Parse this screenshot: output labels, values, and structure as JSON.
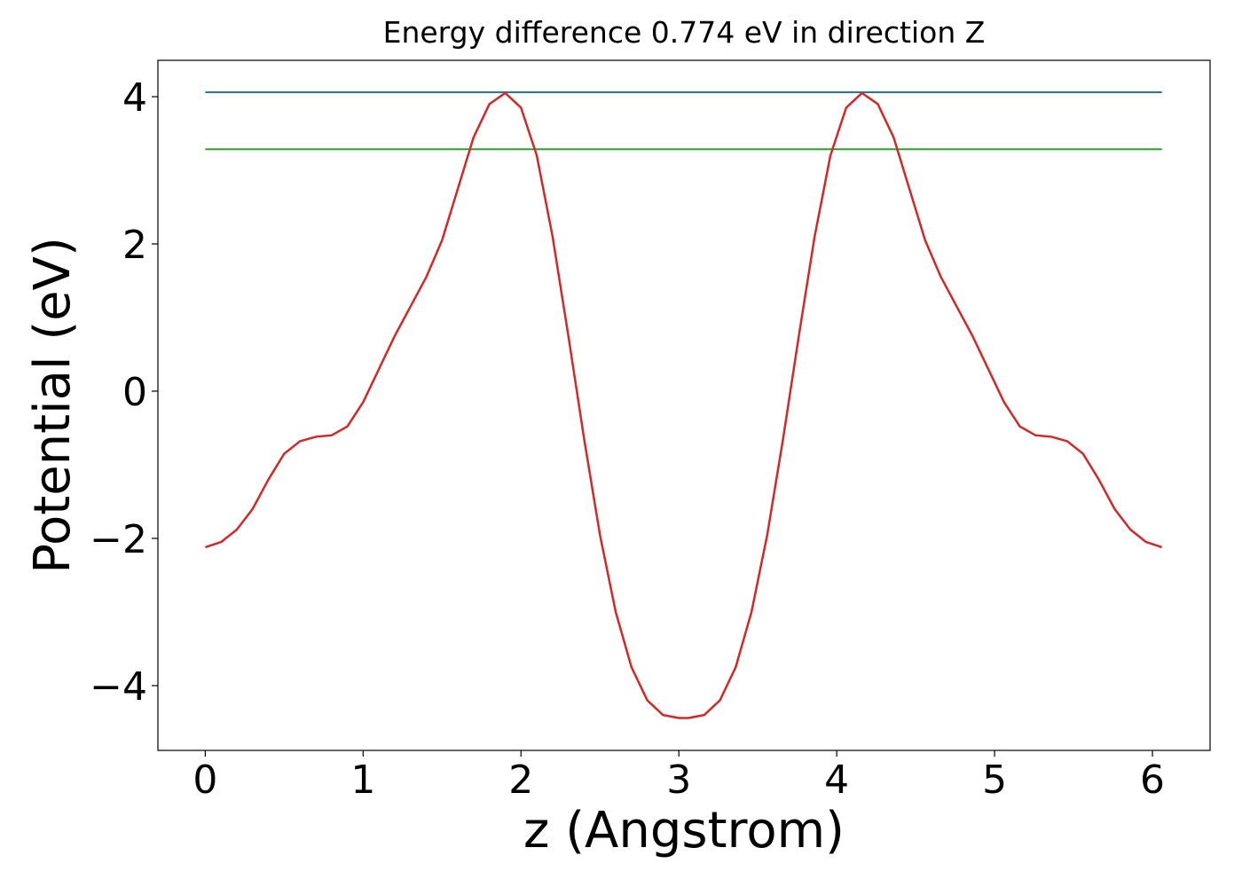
{
  "chart_data": {
    "type": "line",
    "title": "Energy difference 0.774 eV in direction Z",
    "xlabel": "z (Angstrom)",
    "ylabel": "Potential (eV)",
    "x": [
      0,
      0.1,
      0.2,
      0.3,
      0.4,
      0.5,
      0.6,
      0.7,
      0.8,
      0.9,
      1.0,
      1.1,
      1.2,
      1.3,
      1.4,
      1.5,
      1.6,
      1.7,
      1.8,
      1.9,
      2.0,
      2.1,
      2.2,
      2.3,
      2.4,
      2.5,
      2.6,
      2.7,
      2.8,
      2.9,
      3.0,
      3.06,
      3.16,
      3.26,
      3.36,
      3.46,
      3.56,
      3.66,
      3.76,
      3.86,
      3.96,
      4.06,
      4.16,
      4.26,
      4.36,
      4.46,
      4.56,
      4.66,
      4.76,
      4.86,
      4.96,
      5.06,
      5.16,
      5.26,
      5.36,
      5.46,
      5.56,
      5.66,
      5.76,
      5.86,
      5.96,
      6.06
    ],
    "series": [
      {
        "color": "#d62728",
        "values": [
          -2.12,
          -2.05,
          -1.88,
          -1.6,
          -1.2,
          -0.85,
          -0.68,
          -0.62,
          -0.6,
          -0.48,
          -0.15,
          0.3,
          0.75,
          1.15,
          1.55,
          2.05,
          2.75,
          3.45,
          3.9,
          4.05,
          3.85,
          3.2,
          2.1,
          0.75,
          -0.65,
          -1.95,
          -3.0,
          -3.75,
          -4.2,
          -4.4,
          -4.44,
          -4.44,
          -4.4,
          -4.2,
          -3.75,
          -3.0,
          -1.95,
          -0.65,
          0.75,
          2.1,
          3.2,
          3.85,
          4.05,
          3.9,
          3.45,
          2.75,
          2.05,
          1.55,
          1.15,
          0.75,
          0.3,
          -0.15,
          -0.48,
          -0.6,
          -0.62,
          -0.68,
          -0.85,
          -1.2,
          -1.6,
          -1.88,
          -2.05,
          -2.12
        ]
      }
    ],
    "hlines": [
      {
        "y": 4.06,
        "color": "#1f77b4"
      },
      {
        "y": 3.286,
        "color": "#2ca02c"
      }
    ],
    "xlim": [
      -0.3,
      6.365
    ],
    "ylim": [
      -4.88,
      4.494
    ],
    "xticks": [
      0,
      1,
      2,
      3,
      4,
      5,
      6
    ],
    "yticks": [
      {
        "value": -4,
        "label": "−4"
      },
      {
        "value": -2,
        "label": "−2"
      },
      0,
      2,
      4
    ],
    "grid": false
  }
}
